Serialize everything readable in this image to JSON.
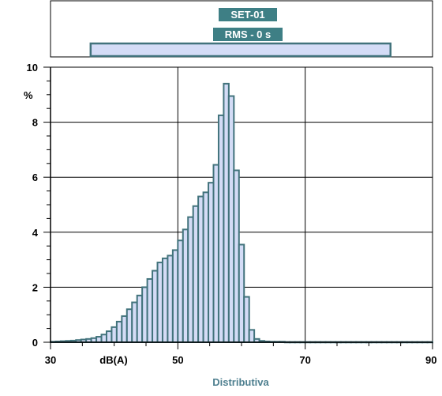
{
  "chart_data": {
    "type": "bar",
    "subtitle_label": "RMS - 0 s",
    "title_label": "SET-01",
    "ylabel": "%",
    "xlabel": "Distributiva",
    "unit_label": "dB(A)",
    "xlim": [
      30,
      90
    ],
    "ylim": [
      0,
      10
    ],
    "x_ticks": [
      30,
      50,
      70,
      90
    ],
    "y_ticks": [
      0,
      2,
      4,
      6,
      8,
      10
    ],
    "grid": true,
    "range_bar": [
      36.3,
      83.4
    ],
    "bin_width": 0.8,
    "bin_start": 30,
    "values": [
      0.02,
      0.03,
      0.04,
      0.05,
      0.06,
      0.08,
      0.1,
      0.12,
      0.15,
      0.2,
      0.28,
      0.4,
      0.55,
      0.75,
      0.95,
      1.2,
      1.45,
      1.7,
      2.0,
      2.3,
      2.6,
      2.9,
      3.05,
      3.15,
      3.35,
      3.7,
      4.1,
      4.55,
      4.95,
      5.3,
      5.45,
      5.8,
      6.45,
      8.25,
      9.4,
      8.95,
      6.25,
      3.55,
      1.65,
      0.45,
      0.12,
      0.05,
      0.03,
      0.02,
      0.02,
      0.02,
      0.01,
      0.01,
      0.01,
      0.01,
      0.01,
      0.01,
      0.01,
      0.01,
      0.01,
      0.01,
      0.01,
      0.01,
      0.01,
      0.01,
      0.01,
      0.01,
      0.01,
      0.01,
      0.01,
      0.01,
      0.01,
      0.01,
      0.01,
      0.01,
      0.01,
      0.01,
      0.01,
      0.01,
      0.01
    ],
    "colors": {
      "bar_fill": "#d4dcf6",
      "bar_stroke": "#42737c",
      "label_box": "#3e7f85",
      "grid": "#000000",
      "xlabel": "#4f8090"
    }
  }
}
